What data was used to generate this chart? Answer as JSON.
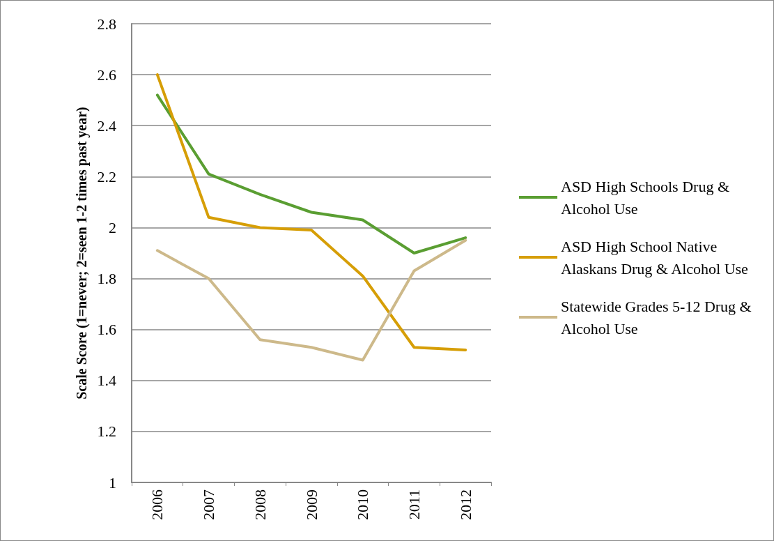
{
  "chart_data": {
    "type": "line",
    "ylabel": "Scale Score (1=never; 2=seen 1-2 times past year)",
    "categories": [
      "2006",
      "2007",
      "2008",
      "2009",
      "2010",
      "2011",
      "2012"
    ],
    "series": [
      {
        "name": "ASD High Schools Drug & Alcohol Use",
        "color": "#5a9e32",
        "values": [
          2.52,
          2.21,
          2.13,
          2.06,
          2.03,
          1.9,
          1.96
        ]
      },
      {
        "name": "ASD High School Native Alaskans Drug & Alcohol Use",
        "color": "#d69e06",
        "values": [
          2.6,
          2.04,
          2.0,
          1.99,
          1.81,
          1.53,
          1.52
        ]
      },
      {
        "name": "Statewide Grades 5-12 Drug & Alcohol Use",
        "color": "#cdb98a",
        "values": [
          1.91,
          1.8,
          1.56,
          1.53,
          1.48,
          1.83,
          1.95
        ]
      }
    ],
    "ylim": [
      1,
      2.8
    ],
    "yticks": [
      1,
      1.2,
      1.4,
      1.6,
      1.8,
      2,
      2.2,
      2.4,
      2.6,
      2.8
    ],
    "grid": "y",
    "legend": "right",
    "marker": "none",
    "line_style": "solid"
  }
}
